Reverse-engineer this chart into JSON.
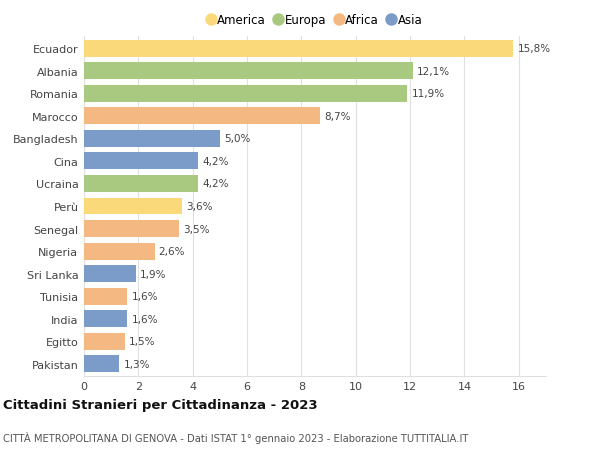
{
  "categories": [
    "Ecuador",
    "Albania",
    "Romania",
    "Marocco",
    "Bangladesh",
    "Cina",
    "Ucraina",
    "Perù",
    "Senegal",
    "Nigeria",
    "Sri Lanka",
    "Tunisia",
    "India",
    "Egitto",
    "Pakistan"
  ],
  "values": [
    15.8,
    12.1,
    11.9,
    8.7,
    5.0,
    4.2,
    4.2,
    3.6,
    3.5,
    2.6,
    1.9,
    1.6,
    1.6,
    1.5,
    1.3
  ],
  "labels": [
    "15,8%",
    "12,1%",
    "11,9%",
    "8,7%",
    "5,0%",
    "4,2%",
    "4,2%",
    "3,6%",
    "3,5%",
    "2,6%",
    "1,9%",
    "1,6%",
    "1,6%",
    "1,5%",
    "1,3%"
  ],
  "bar_colors": [
    "#FAD97A",
    "#A8C97F",
    "#A8C97F",
    "#F4B882",
    "#7B9CC9",
    "#7B9CC9",
    "#A8C97F",
    "#FAD97A",
    "#F4B882",
    "#F4B882",
    "#7B9CC9",
    "#F4B882",
    "#7B9CC9",
    "#F4B882",
    "#7B9CC9"
  ],
  "legend_items": [
    {
      "label": "America",
      "color": "#FAD97A"
    },
    {
      "label": "Europa",
      "color": "#A8C97F"
    },
    {
      "label": "Africa",
      "color": "#F4B882"
    },
    {
      "label": "Asia",
      "color": "#7B9CC9"
    }
  ],
  "xlim": [
    0,
    17
  ],
  "xticks": [
    0,
    2,
    4,
    6,
    8,
    10,
    12,
    14,
    16
  ],
  "title": "Cittadini Stranieri per Cittadinanza - 2023",
  "subtitle": "CITTÀ METROPOLITANA DI GENOVA - Dati ISTAT 1° gennaio 2023 - Elaborazione TUTTITALIA.IT",
  "background_color": "#ffffff",
  "grid_color": "#e0e0e0",
  "bar_height": 0.75,
  "label_fontsize": 7.5,
  "ytick_fontsize": 8.0,
  "xtick_fontsize": 8.0,
  "title_fontsize": 9.5,
  "subtitle_fontsize": 7.2,
  "legend_fontsize": 8.5
}
